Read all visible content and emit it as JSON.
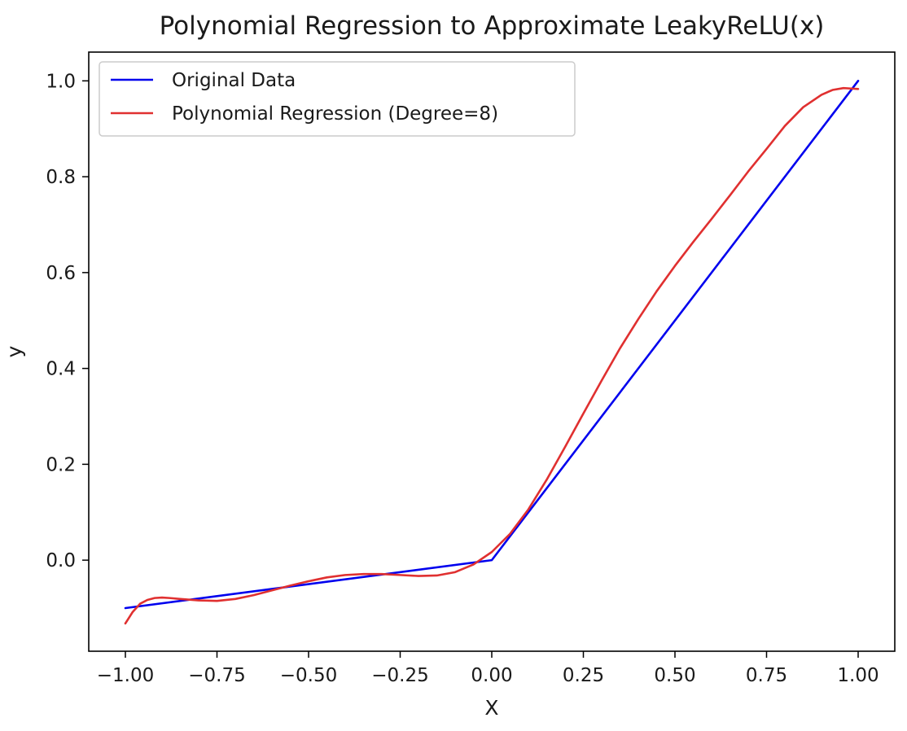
{
  "chart_data": {
    "type": "line",
    "title": "Polynomial Regression to Approximate LeakyReLU(x)",
    "xlabel": "X",
    "ylabel": "y",
    "xlim": [
      -1.1,
      1.1
    ],
    "ylim": [
      -0.19,
      1.06
    ],
    "xticks": [
      -1.0,
      -0.75,
      -0.5,
      -0.25,
      0.0,
      0.25,
      0.5,
      0.75,
      1.0
    ],
    "xtick_labels": [
      "−1.00",
      "−0.75",
      "−0.50",
      "−0.25",
      "0.00",
      "0.25",
      "0.50",
      "0.75",
      "1.00"
    ],
    "yticks": [
      0.0,
      0.2,
      0.4,
      0.6,
      0.8,
      1.0
    ],
    "ytick_labels": [
      "0.0",
      "0.2",
      "0.4",
      "0.6",
      "0.8",
      "1.0"
    ],
    "grid": false,
    "legend": "top-left",
    "series": [
      {
        "name": "Original Data",
        "color": "#0000ee",
        "x": [
          -1.0,
          0.0,
          1.0
        ],
        "y": [
          -0.1,
          0.0,
          1.0
        ]
      },
      {
        "name": "Polynomial Regression (Degree=8)",
        "color": "#e03030",
        "x": [
          -1.0,
          -0.98,
          -0.96,
          -0.94,
          -0.92,
          -0.9,
          -0.88,
          -0.85,
          -0.8,
          -0.75,
          -0.7,
          -0.65,
          -0.6,
          -0.55,
          -0.5,
          -0.45,
          -0.4,
          -0.35,
          -0.3,
          -0.25,
          -0.2,
          -0.15,
          -0.1,
          -0.05,
          0.0,
          0.05,
          0.1,
          0.15,
          0.2,
          0.25,
          0.3,
          0.35,
          0.4,
          0.45,
          0.5,
          0.55,
          0.6,
          0.65,
          0.7,
          0.75,
          0.8,
          0.85,
          0.9,
          0.93,
          0.96,
          0.98,
          1.0
        ],
        "y": [
          -0.132,
          -0.108,
          -0.091,
          -0.083,
          -0.079,
          -0.078,
          -0.079,
          -0.081,
          -0.084,
          -0.085,
          -0.081,
          -0.073,
          -0.063,
          -0.053,
          -0.044,
          -0.036,
          -0.031,
          -0.029,
          -0.029,
          -0.031,
          -0.033,
          -0.032,
          -0.025,
          -0.009,
          0.017,
          0.055,
          0.106,
          0.168,
          0.236,
          0.306,
          0.375,
          0.442,
          0.503,
          0.561,
          0.614,
          0.664,
          0.712,
          0.761,
          0.811,
          0.858,
          0.906,
          0.945,
          0.971,
          0.981,
          0.985,
          0.984,
          0.983
        ]
      }
    ]
  }
}
